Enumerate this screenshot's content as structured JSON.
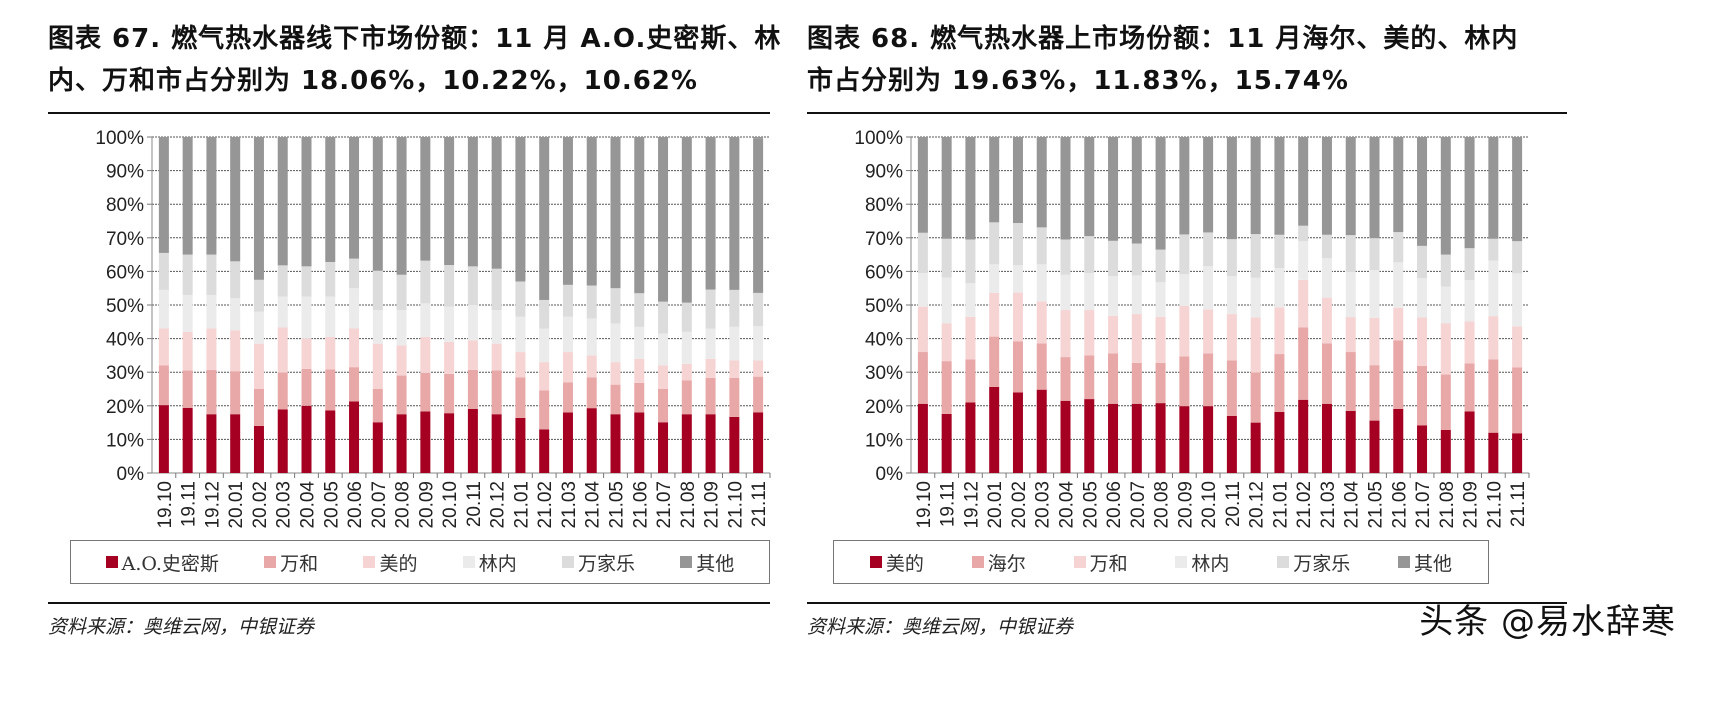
{
  "left": {
    "title_line1": "图表 67. 燃气热水器线下市场份额：11 月 A.O.史密斯、林",
    "title_line2": "内、万和市占分别为 18.06%，10.22%，10.62%",
    "source": "资料来源：奥维云网，中银证券"
  },
  "right": {
    "title_line1": "图表 68. 燃气热水器上市场份额：11 月海尔、美的、林内",
    "title_line2": "市占分别为 19.63%，11.83%，15.74%",
    "source": "资料来源：奥维云网，中银证券"
  },
  "watermark": "头条 @易水辞寒",
  "chart_data": [
    {
      "type": "bar",
      "stacked": true,
      "title": "燃气热水器线下市场份额",
      "xlabel": "",
      "ylabel": "",
      "ylim": [
        0,
        100
      ],
      "yticks": [
        "0%",
        "10%",
        "20%",
        "30%",
        "40%",
        "50%",
        "60%",
        "70%",
        "80%",
        "90%",
        "100%"
      ],
      "grid": true,
      "legend_position": "bottom",
      "categories": [
        "19.10",
        "19.11",
        "19.12",
        "20.01",
        "20.02",
        "20.03",
        "20.04",
        "20.05",
        "20.06",
        "20.07",
        "20.08",
        "20.09",
        "20.10",
        "20.11",
        "20.12",
        "21.01",
        "21.02",
        "21.03",
        "21.04",
        "21.05",
        "21.06",
        "21.07",
        "21.08",
        "21.09",
        "21.10",
        "21.11"
      ],
      "series": [
        {
          "name": "A.O.史密斯",
          "color": "#a50021",
          "values": [
            20.2,
            19.4,
            17.5,
            17.5,
            14.0,
            18.9,
            20.0,
            18.6,
            21.3,
            15.1,
            17.5,
            18.3,
            17.8,
            19.1,
            17.5,
            16.4,
            13.0,
            18.0,
            19.3,
            17.5,
            18.0,
            15.1,
            17.5,
            17.5,
            16.7,
            18.06
          ]
        },
        {
          "name": "万和",
          "color": "#e8a8a8",
          "values": [
            11.8,
            11.1,
            13.2,
            12.8,
            11.0,
            11.0,
            11.0,
            12.2,
            10.2,
            9.9,
            11.5,
            11.5,
            11.7,
            11.6,
            13.0,
            12.1,
            11.6,
            9.0,
            9.2,
            8.8,
            8.8,
            9.9,
            10.1,
            10.8,
            11.6,
            10.62
          ]
        },
        {
          "name": "美的",
          "color": "#f6d4d4",
          "values": [
            11.0,
            11.5,
            12.3,
            12.2,
            13.5,
            13.4,
            9.0,
            9.7,
            11.5,
            13.5,
            9.0,
            10.7,
            9.5,
            8.8,
            8.0,
            7.5,
            8.4,
            9.0,
            6.5,
            6.7,
            7.2,
            7.0,
            4.9,
            5.7,
            5.2,
            4.8
          ]
        },
        {
          "name": "林内",
          "color": "#ebebeb",
          "values": [
            11.5,
            11.0,
            10.0,
            9.5,
            9.5,
            9.2,
            12.5,
            12.0,
            12.0,
            10.0,
            10.5,
            10.0,
            10.5,
            10.5,
            10.0,
            10.5,
            10.0,
            10.5,
            11.0,
            11.5,
            9.5,
            9.5,
            9.5,
            9.0,
            10.0,
            10.22
          ]
        },
        {
          "name": "万家乐",
          "color": "#dcdcdc",
          "values": [
            11.0,
            12.0,
            12.0,
            11.0,
            9.5,
            9.3,
            9.0,
            10.3,
            8.8,
            11.7,
            10.5,
            12.7,
            12.4,
            11.5,
            12.3,
            10.5,
            8.5,
            9.5,
            9.8,
            10.5,
            10.0,
            9.5,
            8.7,
            11.6,
            11.0,
            9.9
          ]
        },
        {
          "name": "其他",
          "color": "#969696",
          "values": [
            34.5,
            35.0,
            35.0,
            37.0,
            42.5,
            38.2,
            38.5,
            37.2,
            36.2,
            39.8,
            41.0,
            36.8,
            38.1,
            38.5,
            39.2,
            43.0,
            48.5,
            44.0,
            44.2,
            45.0,
            46.5,
            49.0,
            49.3,
            45.4,
            45.5,
            46.0
          ]
        }
      ]
    },
    {
      "type": "bar",
      "stacked": true,
      "title": "燃气热水器线上市场份额",
      "xlabel": "",
      "ylabel": "",
      "ylim": [
        0,
        100
      ],
      "yticks": [
        "0%",
        "10%",
        "20%",
        "30%",
        "40%",
        "50%",
        "60%",
        "70%",
        "80%",
        "90%",
        "100%"
      ],
      "grid": true,
      "legend_position": "bottom",
      "categories": [
        "19.10",
        "19.11",
        "19.12",
        "20.01",
        "20.02",
        "20.03",
        "20.04",
        "20.05",
        "20.06",
        "20.07",
        "20.08",
        "20.09",
        "20.10",
        "20.11",
        "20.12",
        "21.01",
        "21.02",
        "21.03",
        "21.04",
        "21.05",
        "21.06",
        "21.07",
        "21.08",
        "21.09",
        "21.10",
        "21.11"
      ],
      "series": [
        {
          "name": "美的",
          "color": "#a50021",
          "values": [
            20.6,
            17.6,
            21.0,
            25.6,
            24.0,
            24.8,
            21.5,
            22.0,
            20.6,
            20.6,
            20.8,
            19.9,
            19.9,
            17.0,
            15.0,
            18.2,
            21.8,
            20.6,
            18.5,
            15.6,
            19.1,
            14.2,
            12.8,
            18.3,
            12.0,
            11.83
          ]
        },
        {
          "name": "海尔",
          "color": "#e8a8a8",
          "values": [
            15.4,
            15.7,
            12.8,
            15.0,
            15.2,
            13.8,
            13.0,
            13.0,
            15.0,
            12.2,
            12.0,
            14.8,
            15.7,
            16.5,
            14.9,
            17.2,
            21.5,
            18.0,
            17.5,
            16.5,
            20.4,
            17.7,
            16.5,
            14.3,
            21.8,
            19.63
          ]
        },
        {
          "name": "万和",
          "color": "#f6d4d4",
          "values": [
            13.5,
            11.2,
            12.7,
            13.0,
            14.5,
            12.5,
            14.0,
            13.5,
            11.2,
            14.5,
            13.7,
            15.0,
            13.1,
            13.8,
            16.4,
            13.9,
            14.2,
            13.6,
            10.4,
            14.1,
            9.7,
            14.4,
            15.3,
            12.5,
            12.9,
            12.2
          ]
        },
        {
          "name": "林内",
          "color": "#ebebeb",
          "values": [
            10.0,
            13.7,
            10.0,
            8.5,
            8.2,
            11.0,
            10.5,
            11.0,
            11.8,
            11.5,
            10.3,
            9.5,
            12.9,
            11.3,
            11.8,
            11.7,
            11.5,
            11.7,
            13.4,
            14.2,
            13.5,
            11.7,
            10.9,
            12.3,
            16.5,
            15.74
          ]
        },
        {
          "name": "万家乐",
          "color": "#dcdcdc",
          "values": [
            12.0,
            11.5,
            13.0,
            12.5,
            12.5,
            11.0,
            10.5,
            11.0,
            10.5,
            9.5,
            9.7,
            11.8,
            10.0,
            11.0,
            13.0,
            9.9,
            4.6,
            7.0,
            11.0,
            9.5,
            9.0,
            9.6,
            9.5,
            9.5,
            6.5,
            9.6
          ]
        },
        {
          "name": "其他",
          "color": "#969696",
          "values": [
            28.5,
            30.3,
            30.5,
            25.4,
            25.6,
            26.9,
            30.5,
            29.5,
            30.9,
            31.7,
            33.5,
            29.0,
            28.4,
            30.4,
            28.9,
            29.1,
            26.4,
            29.1,
            29.2,
            30.1,
            28.3,
            32.4,
            35.0,
            33.1,
            30.3,
            31.0
          ]
        }
      ]
    }
  ]
}
